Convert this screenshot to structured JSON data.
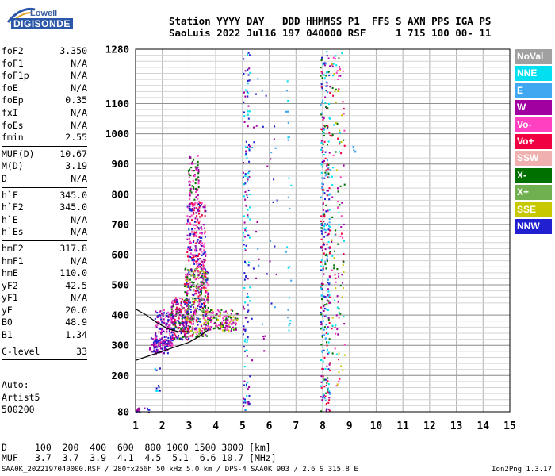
{
  "logo": {
    "lowell": "Lowell",
    "digisonde": "DIGISONDE"
  },
  "header": {
    "line1": "Station YYYY DAY   DDD HHMMSS P1  FFS S AXN PPS IGA PS",
    "line2": "SaoLuis 2022 Jul16 197 040000 RSF     1 715 100 00- 11"
  },
  "params": [
    {
      "label": "foF2",
      "value": "3.350"
    },
    {
      "label": "foF1",
      "value": "N/A"
    },
    {
      "label": "foF1p",
      "value": "N/A"
    },
    {
      "label": "foE",
      "value": "N/A"
    },
    {
      "label": "foEp",
      "value": "0.35"
    },
    {
      "label": "fxI",
      "value": "N/A"
    },
    {
      "label": "foEs",
      "value": "N/A"
    },
    {
      "label": "fmin",
      "value": "2.55"
    },
    {
      "sep": true
    },
    {
      "label": "MUF(D)",
      "value": "10.67"
    },
    {
      "label": "M(D)",
      "value": "3.19"
    },
    {
      "label": "D",
      "value": "N/A"
    },
    {
      "sep": true
    },
    {
      "label": "h`F",
      "value": "345.0"
    },
    {
      "label": "h`F2",
      "value": "345.0"
    },
    {
      "label": "h`E",
      "value": "N/A"
    },
    {
      "label": "h`Es",
      "value": "N/A"
    },
    {
      "sep": true
    },
    {
      "label": "hmF2",
      "value": "317.8"
    },
    {
      "label": "hmF1",
      "value": "N/A"
    },
    {
      "label": "hmE",
      "value": "110.0"
    },
    {
      "label": "yF2",
      "value": "42.5"
    },
    {
      "label": "yF1",
      "value": "N/A"
    },
    {
      "label": "yE",
      "value": "20.0"
    },
    {
      "label": "B0",
      "value": "48.9"
    },
    {
      "label": "B1",
      "value": "1.34"
    },
    {
      "sep": true
    },
    {
      "label": "C-level",
      "value": "33"
    },
    {
      "sep": true
    }
  ],
  "auto": {
    "line1": "Auto:",
    "line2": "Artist5",
    "line3": "500200"
  },
  "muf_table": {
    "d_label": "D",
    "d_values": "100  200  400  600  800 1000 1500 3000 [km]",
    "muf_label": "MUF",
    "muf_values": "3.7  3.7  3.9  4.1  4.5  5.1  6.6 10.7 [MHz]"
  },
  "footer": {
    "left": "SAA0K_2022197040000.RSF / 280fx256h 50 kHz 5.0 km / DPS-4 SAA0K 903 / 2.6 S 315.8 E",
    "right": "Ion2Png 1.3.17"
  },
  "legend": [
    {
      "label": "NoVal",
      "color": "#a0a0a0"
    },
    {
      "label": "NNE",
      "color": "#00e0f0"
    },
    {
      "label": "E",
      "color": "#40a8f0"
    },
    {
      "label": "W",
      "color": "#a000a0"
    },
    {
      "label": "Vo-",
      "color": "#ff40c0"
    },
    {
      "label": "Vo+",
      "color": "#f00040"
    },
    {
      "label": "SSW",
      "color": "#f0b0b0"
    },
    {
      "label": "X-",
      "color": "#007000"
    },
    {
      "label": "X+",
      "color": "#70b050"
    },
    {
      "label": "SSE",
      "color": "#c8c800"
    },
    {
      "label": "NNW",
      "color": "#2020d0"
    }
  ],
  "chart_data": {
    "type": "scatter",
    "xlim": [
      1,
      15
    ],
    "ylim": [
      80,
      1280
    ],
    "x_ticks": [
      "1",
      "2",
      "3",
      "4",
      "5",
      "6",
      "7",
      "8",
      "9",
      "10",
      "11",
      "12",
      "13",
      "14",
      "15"
    ],
    "y_ticks": [
      {
        "v": 80,
        "label": "80"
      },
      {
        "v": 200,
        "label": "200"
      },
      {
        "v": 300,
        "label": "300"
      },
      {
        "v": 400,
        "label": "400"
      },
      {
        "v": 500,
        "label": "500"
      },
      {
        "v": 600,
        "label": "600"
      },
      {
        "v": 700,
        "label": "700"
      },
      {
        "v": 800,
        "label": "800"
      },
      {
        "v": 900,
        "label": "900"
      },
      {
        "v": 1000,
        "label": "1000"
      },
      {
        "v": 1100,
        "label": "1100"
      },
      {
        "v": 1280,
        "label": "1280"
      }
    ],
    "grid": true,
    "echo_clusters": [
      {
        "x": [
          1.5,
          2.2
        ],
        "y": [
          275,
          330
        ],
        "n": 90,
        "colors": [
          "#2020d0",
          "#a000a0"
        ]
      },
      {
        "x": [
          1.7,
          2.4
        ],
        "y": [
          300,
          420
        ],
        "n": 140,
        "colors": [
          "#2020d0",
          "#a000a0",
          "#ff40c0"
        ]
      },
      {
        "x": [
          2.3,
          3.0
        ],
        "y": [
          320,
          460
        ],
        "n": 220,
        "colors": [
          "#a000a0",
          "#ff40c0",
          "#2020d0",
          "#f00040",
          "#007000"
        ]
      },
      {
        "x": [
          2.8,
          3.7
        ],
        "y": [
          330,
          560
        ],
        "n": 420,
        "colors": [
          "#ff40c0",
          "#a000a0",
          "#f00040",
          "#2020d0",
          "#c8c800",
          "#007000",
          "#70b050"
        ]
      },
      {
        "x": [
          2.9,
          3.6
        ],
        "y": [
          560,
          780
        ],
        "n": 200,
        "colors": [
          "#ff40c0",
          "#a000a0",
          "#f00040",
          "#2020d0"
        ]
      },
      {
        "x": [
          2.95,
          3.35
        ],
        "y": [
          780,
          930
        ],
        "n": 70,
        "colors": [
          "#ff40c0",
          "#a000a0",
          "#007000"
        ]
      },
      {
        "x": [
          3.5,
          4.8
        ],
        "y": [
          350,
          420
        ],
        "n": 150,
        "colors": [
          "#ff40c0",
          "#c8c800",
          "#a000a0",
          "#007000"
        ]
      },
      {
        "x": [
          5.0,
          5.25
        ],
        "y": [
          80,
          1280
        ],
        "n": 150,
        "colors": [
          "#2020d0",
          "#a000a0",
          "#00e0f0"
        ]
      },
      {
        "x": [
          5.3,
          6.3
        ],
        "y": [
          250,
          1200
        ],
        "n": 40,
        "colors": [
          "#2020d0",
          "#a000a0",
          "#40a8f0"
        ]
      },
      {
        "x": [
          6.6,
          6.8
        ],
        "y": [
          300,
          1200
        ],
        "n": 25,
        "colors": [
          "#00e0f0",
          "#40a8f0"
        ]
      },
      {
        "x": [
          7.9,
          8.25
        ],
        "y": [
          80,
          1280
        ],
        "n": 340,
        "colors": [
          "#00e0f0",
          "#40a8f0",
          "#2020d0",
          "#007000",
          "#a000a0",
          "#f00040"
        ]
      },
      {
        "x": [
          8.3,
          8.8
        ],
        "y": [
          150,
          1280
        ],
        "n": 140,
        "colors": [
          "#00e0f0",
          "#c8c800",
          "#a000a0",
          "#f00040",
          "#007000",
          "#ff40c0"
        ]
      },
      {
        "x": [
          1.0,
          1.5
        ],
        "y": [
          80,
          95
        ],
        "n": 14,
        "colors": [
          "#2020d0",
          "#a000a0"
        ]
      },
      {
        "x": [
          1.7,
          1.9
        ],
        "y": [
          150,
          230
        ],
        "n": 10,
        "colors": [
          "#00e0f0",
          "#2020d0"
        ]
      },
      {
        "x": [
          9.1,
          9.2
        ],
        "y": [
          940,
          960
        ],
        "n": 4,
        "colors": [
          "#40a8f0"
        ]
      }
    ],
    "traces": [
      {
        "name": "",
        "points": [
          [
            1.0,
            250
          ],
          [
            1.5,
            265
          ],
          [
            2.0,
            280
          ],
          [
            2.5,
            295
          ],
          [
            3.0,
            310
          ],
          [
            3.4,
            330
          ],
          [
            3.7,
            350
          ]
        ]
      },
      {
        "name": "",
        "points": [
          [
            1.0,
            420
          ],
          [
            1.4,
            400
          ],
          [
            1.8,
            375
          ],
          [
            2.2,
            355
          ],
          [
            2.6,
            345
          ],
          [
            3.0,
            345
          ]
        ]
      }
    ]
  }
}
